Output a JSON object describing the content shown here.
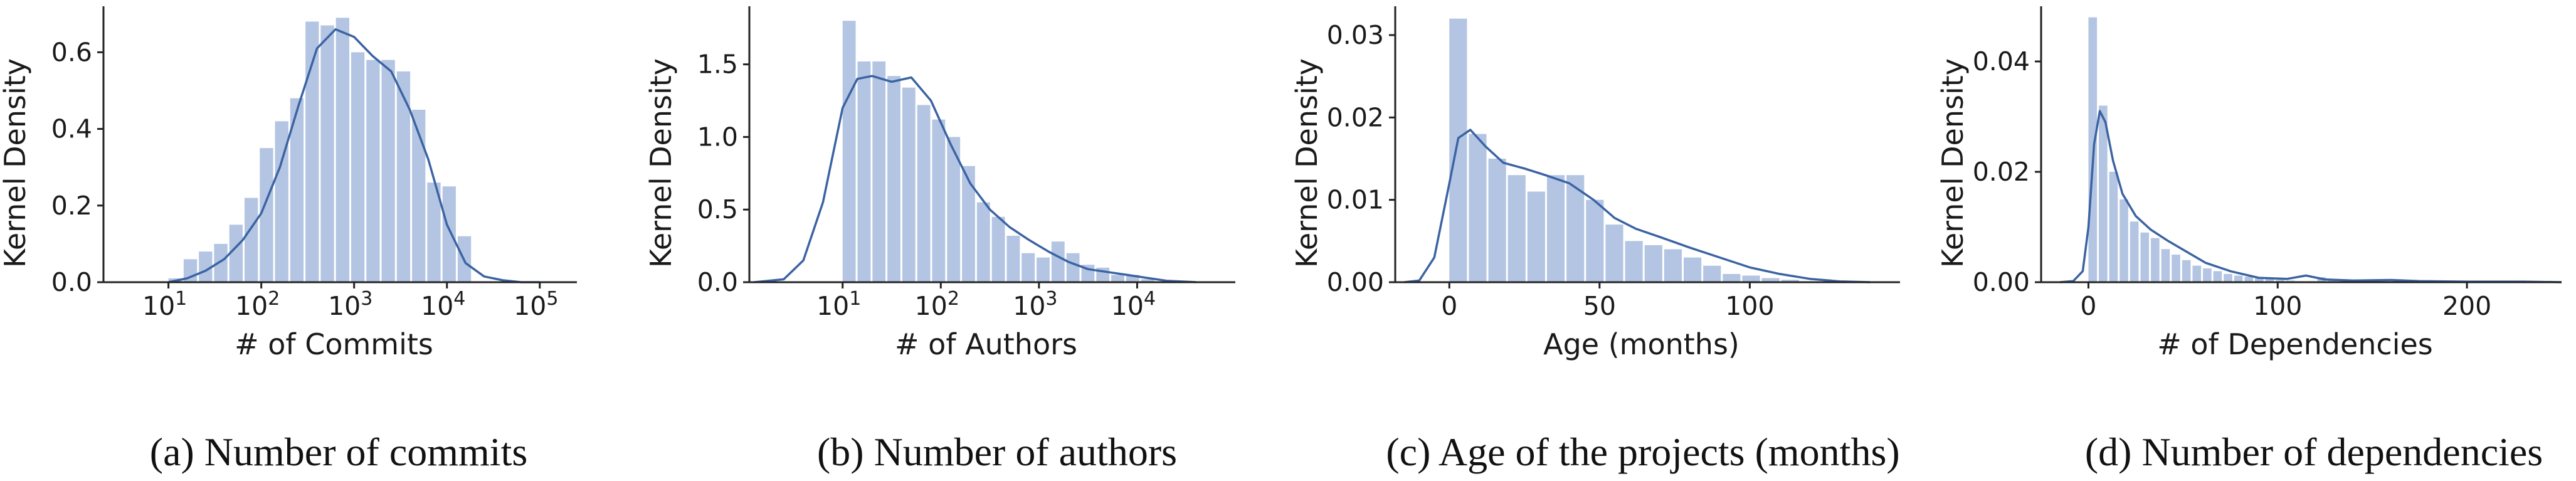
{
  "colors": {
    "bar": "#b3c5e2",
    "kde": "#3b63a2",
    "axis": "#222222",
    "text": "#1a1a1a"
  },
  "chart_data": [
    {
      "type": "bar",
      "caption": "(a) Number of commits",
      "xlabel": "# of Commits",
      "ylabel": "Kernel Density",
      "x_scale": "log10",
      "xlim": [
        0.3,
        5.4
      ],
      "ylim": [
        0,
        0.72
      ],
      "xticks": [
        {
          "value": 1,
          "base": "10",
          "exp": "1"
        },
        {
          "value": 2,
          "base": "10",
          "exp": "2"
        },
        {
          "value": 3,
          "base": "10",
          "exp": "3"
        },
        {
          "value": 4,
          "base": "10",
          "exp": "4"
        },
        {
          "value": 5,
          "base": "10",
          "exp": "5"
        }
      ],
      "yticks": [
        {
          "value": 0.0,
          "label": "0.0"
        },
        {
          "value": 0.2,
          "label": "0.2"
        },
        {
          "value": 0.4,
          "label": "0.4"
        },
        {
          "value": 0.6,
          "label": "0.6"
        }
      ],
      "bin_start": 1.0,
      "bin_width": 0.164,
      "values": [
        0.01,
        0.06,
        0.08,
        0.1,
        0.15,
        0.22,
        0.35,
        0.42,
        0.48,
        0.68,
        0.67,
        0.69,
        0.6,
        0.58,
        0.58,
        0.55,
        0.45,
        0.26,
        0.25,
        0.12
      ],
      "kde": {
        "x": [
          1.0,
          1.2,
          1.4,
          1.6,
          1.8,
          2.0,
          2.2,
          2.4,
          2.6,
          2.8,
          3.0,
          3.2,
          3.4,
          3.6,
          3.8,
          4.0,
          4.2,
          4.4,
          4.6,
          4.8,
          5.0
        ],
        "y": [
          0.0,
          0.01,
          0.03,
          0.06,
          0.11,
          0.18,
          0.3,
          0.46,
          0.61,
          0.66,
          0.64,
          0.59,
          0.55,
          0.45,
          0.32,
          0.15,
          0.05,
          0.015,
          0.005,
          0.0,
          0.0
        ]
      }
    },
    {
      "type": "bar",
      "caption": "(b) Number of authors",
      "xlabel": "# of Authors",
      "ylabel": "Kernel Density",
      "x_scale": "log10",
      "xlim": [
        0.05,
        5.0
      ],
      "ylim": [
        0,
        1.9
      ],
      "xticks": [
        {
          "value": 1,
          "base": "10",
          "exp": "1"
        },
        {
          "value": 2,
          "base": "10",
          "exp": "2"
        },
        {
          "value": 3,
          "base": "10",
          "exp": "3"
        },
        {
          "value": 4,
          "base": "10",
          "exp": "4"
        }
      ],
      "yticks": [
        {
          "value": 0.0,
          "label": "0.0"
        },
        {
          "value": 0.5,
          "label": "0.5"
        },
        {
          "value": 1.0,
          "label": "1.0"
        },
        {
          "value": 1.5,
          "label": "1.5"
        }
      ],
      "bin_start": 1.0,
      "bin_width": 0.152,
      "values": [
        1.8,
        1.52,
        1.52,
        1.42,
        1.34,
        1.22,
        1.12,
        1.0,
        0.8,
        0.55,
        0.45,
        0.32,
        0.2,
        0.17,
        0.28,
        0.2,
        0.12,
        0.1,
        0.05,
        0.05,
        0.02
      ],
      "kde": {
        "x": [
          0.1,
          0.4,
          0.6,
          0.8,
          1.0,
          1.15,
          1.3,
          1.5,
          1.7,
          1.9,
          2.1,
          2.3,
          2.5,
          2.7,
          2.9,
          3.1,
          3.3,
          3.5,
          3.7,
          3.9,
          4.1,
          4.3,
          4.6
        ],
        "y": [
          0.0,
          0.02,
          0.15,
          0.55,
          1.2,
          1.4,
          1.42,
          1.38,
          1.41,
          1.25,
          0.95,
          0.68,
          0.5,
          0.38,
          0.29,
          0.21,
          0.14,
          0.09,
          0.07,
          0.05,
          0.03,
          0.01,
          0.0
        ]
      }
    },
    {
      "type": "bar",
      "caption": "(c) Age of the projects (months)",
      "xlabel": "Age (months)",
      "ylabel": "Kernel Density",
      "x_scale": "linear",
      "xlim": [
        -18,
        150
      ],
      "ylim": [
        0,
        0.0335
      ],
      "xticks": [
        {
          "value": 0,
          "label": "0"
        },
        {
          "value": 50,
          "label": "50"
        },
        {
          "value": 100,
          "label": "100"
        }
      ],
      "yticks": [
        {
          "value": 0.0,
          "label": "0.00"
        },
        {
          "value": 0.01,
          "label": "0.01"
        },
        {
          "value": 0.02,
          "label": "0.02"
        },
        {
          "value": 0.03,
          "label": "0.03"
        }
      ],
      "bin_start": 0,
      "bin_width": 6.5,
      "values": [
        0.032,
        0.018,
        0.015,
        0.013,
        0.011,
        0.013,
        0.013,
        0.01,
        0.007,
        0.005,
        0.0045,
        0.004,
        0.003,
        0.002,
        0.001,
        0.0008,
        0.0005,
        0.0003
      ],
      "kde": {
        "x": [
          -15,
          -10,
          -5,
          0,
          3,
          7,
          12,
          18,
          25,
          32,
          40,
          48,
          55,
          62,
          70,
          80,
          90,
          100,
          110,
          120,
          130,
          140
        ],
        "y": [
          0.0,
          0.0002,
          0.003,
          0.012,
          0.0175,
          0.0185,
          0.0165,
          0.0145,
          0.0138,
          0.013,
          0.012,
          0.01,
          0.0078,
          0.0065,
          0.0055,
          0.0042,
          0.003,
          0.0018,
          0.001,
          0.0004,
          0.0001,
          0.0
        ]
      }
    },
    {
      "type": "bar",
      "caption": "(d) Number of dependencies",
      "xlabel": "# of Dependencies",
      "ylabel": "Kernel Density",
      "x_scale": "linear",
      "xlim": [
        -25,
        250
      ],
      "ylim": [
        0,
        0.05
      ],
      "xticks": [
        {
          "value": 0,
          "label": "0"
        },
        {
          "value": 100,
          "label": "100"
        },
        {
          "value": 200,
          "label": "200"
        }
      ],
      "yticks": [
        {
          "value": 0.0,
          "label": "0.00"
        },
        {
          "value": 0.02,
          "label": "0.02"
        },
        {
          "value": 0.04,
          "label": "0.04"
        }
      ],
      "bin_start": 0,
      "bin_width": 5.5,
      "values": [
        0.048,
        0.032,
        0.02,
        0.015,
        0.011,
        0.009,
        0.008,
        0.006,
        0.005,
        0.004,
        0.003,
        0.0025,
        0.002,
        0.0015,
        0.0012,
        0.001,
        0.0008,
        0.0006,
        0.0004,
        0.0003,
        0.0002,
        0.0002,
        0.0009,
        0.0004,
        0.0002,
        0.0001,
        0.0001,
        0.0001,
        0.0002,
        0.0001
      ],
      "kde": {
        "x": [
          -15,
          -8,
          -3,
          0,
          3,
          6,
          9,
          13,
          18,
          25,
          33,
          42,
          52,
          62,
          75,
          90,
          105,
          115,
          125,
          140,
          160,
          175,
          200,
          230,
          250
        ],
        "y": [
          0.0,
          0.0002,
          0.002,
          0.01,
          0.025,
          0.031,
          0.029,
          0.022,
          0.016,
          0.012,
          0.0095,
          0.0075,
          0.0055,
          0.0035,
          0.002,
          0.0008,
          0.0006,
          0.0012,
          0.0005,
          0.0003,
          0.0004,
          0.0002,
          0.0001,
          0.0001,
          0.0
        ]
      }
    }
  ]
}
